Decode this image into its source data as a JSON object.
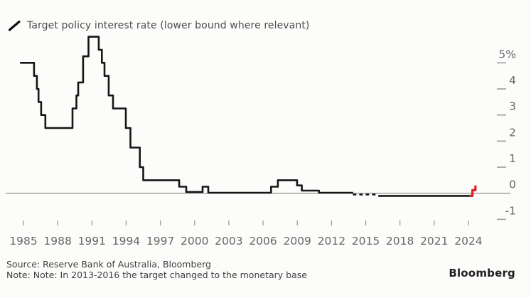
{
  "legend": {
    "icon": "diagonal-line-icon"
  },
  "footer": {
    "source": "Source: Reserve Bank of Australia, Bloomberg",
    "note": "Note: Note: In 2013-2016 the target changed to the monetary base",
    "logo": "Bloomberg"
  },
  "colors": {
    "line": "#161616",
    "accent_red": "#d8232a",
    "axis": "#9a9a9a",
    "tick_label": "#676767",
    "background": "#fcfcfb"
  },
  "chart_data": {
    "type": "line",
    "interpolation": "step-after",
    "title": "Target policy interest rate (lower bound where relevant)",
    "xlabel": "",
    "ylabel": "",
    "unit": "%",
    "xlim": [
      1984.5,
      2025.4
    ],
    "ylim": [
      -1.3,
      6.3
    ],
    "grid": "zero-line-only",
    "legend_position": "top-left",
    "x_ticks": [
      {
        "label": "1985",
        "value": 1985
      },
      {
        "label": "1988",
        "value": 1988
      },
      {
        "label": "1991",
        "value": 1991
      },
      {
        "label": "1994",
        "value": 1994
      },
      {
        "label": "1997",
        "value": 1997
      },
      {
        "label": "2000",
        "value": 2000
      },
      {
        "label": "2003",
        "value": 2003
      },
      {
        "label": "2006",
        "value": 2006
      },
      {
        "label": "2009",
        "value": 2009
      },
      {
        "label": "2012",
        "value": 2012
      },
      {
        "label": "2015",
        "value": 2015
      },
      {
        "label": "2018",
        "value": 2018
      },
      {
        "label": "2021",
        "value": 2021
      },
      {
        "label": "2024",
        "value": 2024
      }
    ],
    "y_ticks": [
      {
        "label": "5%",
        "value": 5
      },
      {
        "label": "4",
        "value": 4
      },
      {
        "label": "3",
        "value": 3
      },
      {
        "label": "2",
        "value": 2
      },
      {
        "label": "1",
        "value": 1
      },
      {
        "label": "0",
        "value": 0
      },
      {
        "label": "-1",
        "value": -1
      }
    ],
    "series": [
      {
        "name": "policy-rate-line",
        "color": "#161616",
        "width": 2.6,
        "dash": null,
        "points": [
          [
            1984.7,
            5.0
          ],
          [
            1985.93,
            4.5
          ],
          [
            1986.18,
            4.0
          ],
          [
            1986.32,
            3.5
          ],
          [
            1986.55,
            3.0
          ],
          [
            1986.92,
            2.5
          ],
          [
            1989.3,
            3.25
          ],
          [
            1989.64,
            3.75
          ],
          [
            1989.8,
            4.25
          ],
          [
            1990.23,
            5.25
          ],
          [
            1990.7,
            6.0
          ],
          [
            1991.6,
            5.5
          ],
          [
            1991.87,
            5.0
          ],
          [
            1992.1,
            4.5
          ],
          [
            1992.47,
            3.75
          ],
          [
            1992.85,
            3.25
          ],
          [
            1993.97,
            2.5
          ],
          [
            1994.38,
            1.75
          ],
          [
            1995.2,
            1.0
          ],
          [
            1995.5,
            0.5
          ],
          [
            1998.65,
            0.25
          ],
          [
            1999.27,
            0.05
          ],
          [
            2000.7,
            0.25
          ],
          [
            2001.2,
            0.02
          ],
          [
            2006.7,
            0.25
          ],
          [
            2007.3,
            0.5
          ],
          [
            2008.98,
            0.3
          ],
          [
            2009.4,
            0.1
          ],
          [
            2010.9,
            0.02
          ],
          [
            2013.9,
            0.02
          ]
        ]
      },
      {
        "name": "policy-rate-monetary-base-era-dashed",
        "color": "#161616",
        "width": 2.6,
        "dash": "2.5 6.5",
        "points": [
          [
            2013.95,
            -0.05
          ],
          [
            2016.1,
            -0.05
          ]
        ]
      },
      {
        "name": "policy-rate-negative-era",
        "color": "#161616",
        "width": 2.6,
        "dash": null,
        "points": [
          [
            2016.1,
            -0.1
          ],
          [
            2024.1,
            -0.1
          ]
        ]
      },
      {
        "name": "policy-rate-latest-hikes-highlight",
        "color": "#d8232a",
        "width": 3.2,
        "dash": null,
        "points": [
          [
            2024.1,
            -0.1
          ],
          [
            2024.35,
            0.12
          ],
          [
            2024.62,
            0.3
          ]
        ]
      }
    ]
  }
}
